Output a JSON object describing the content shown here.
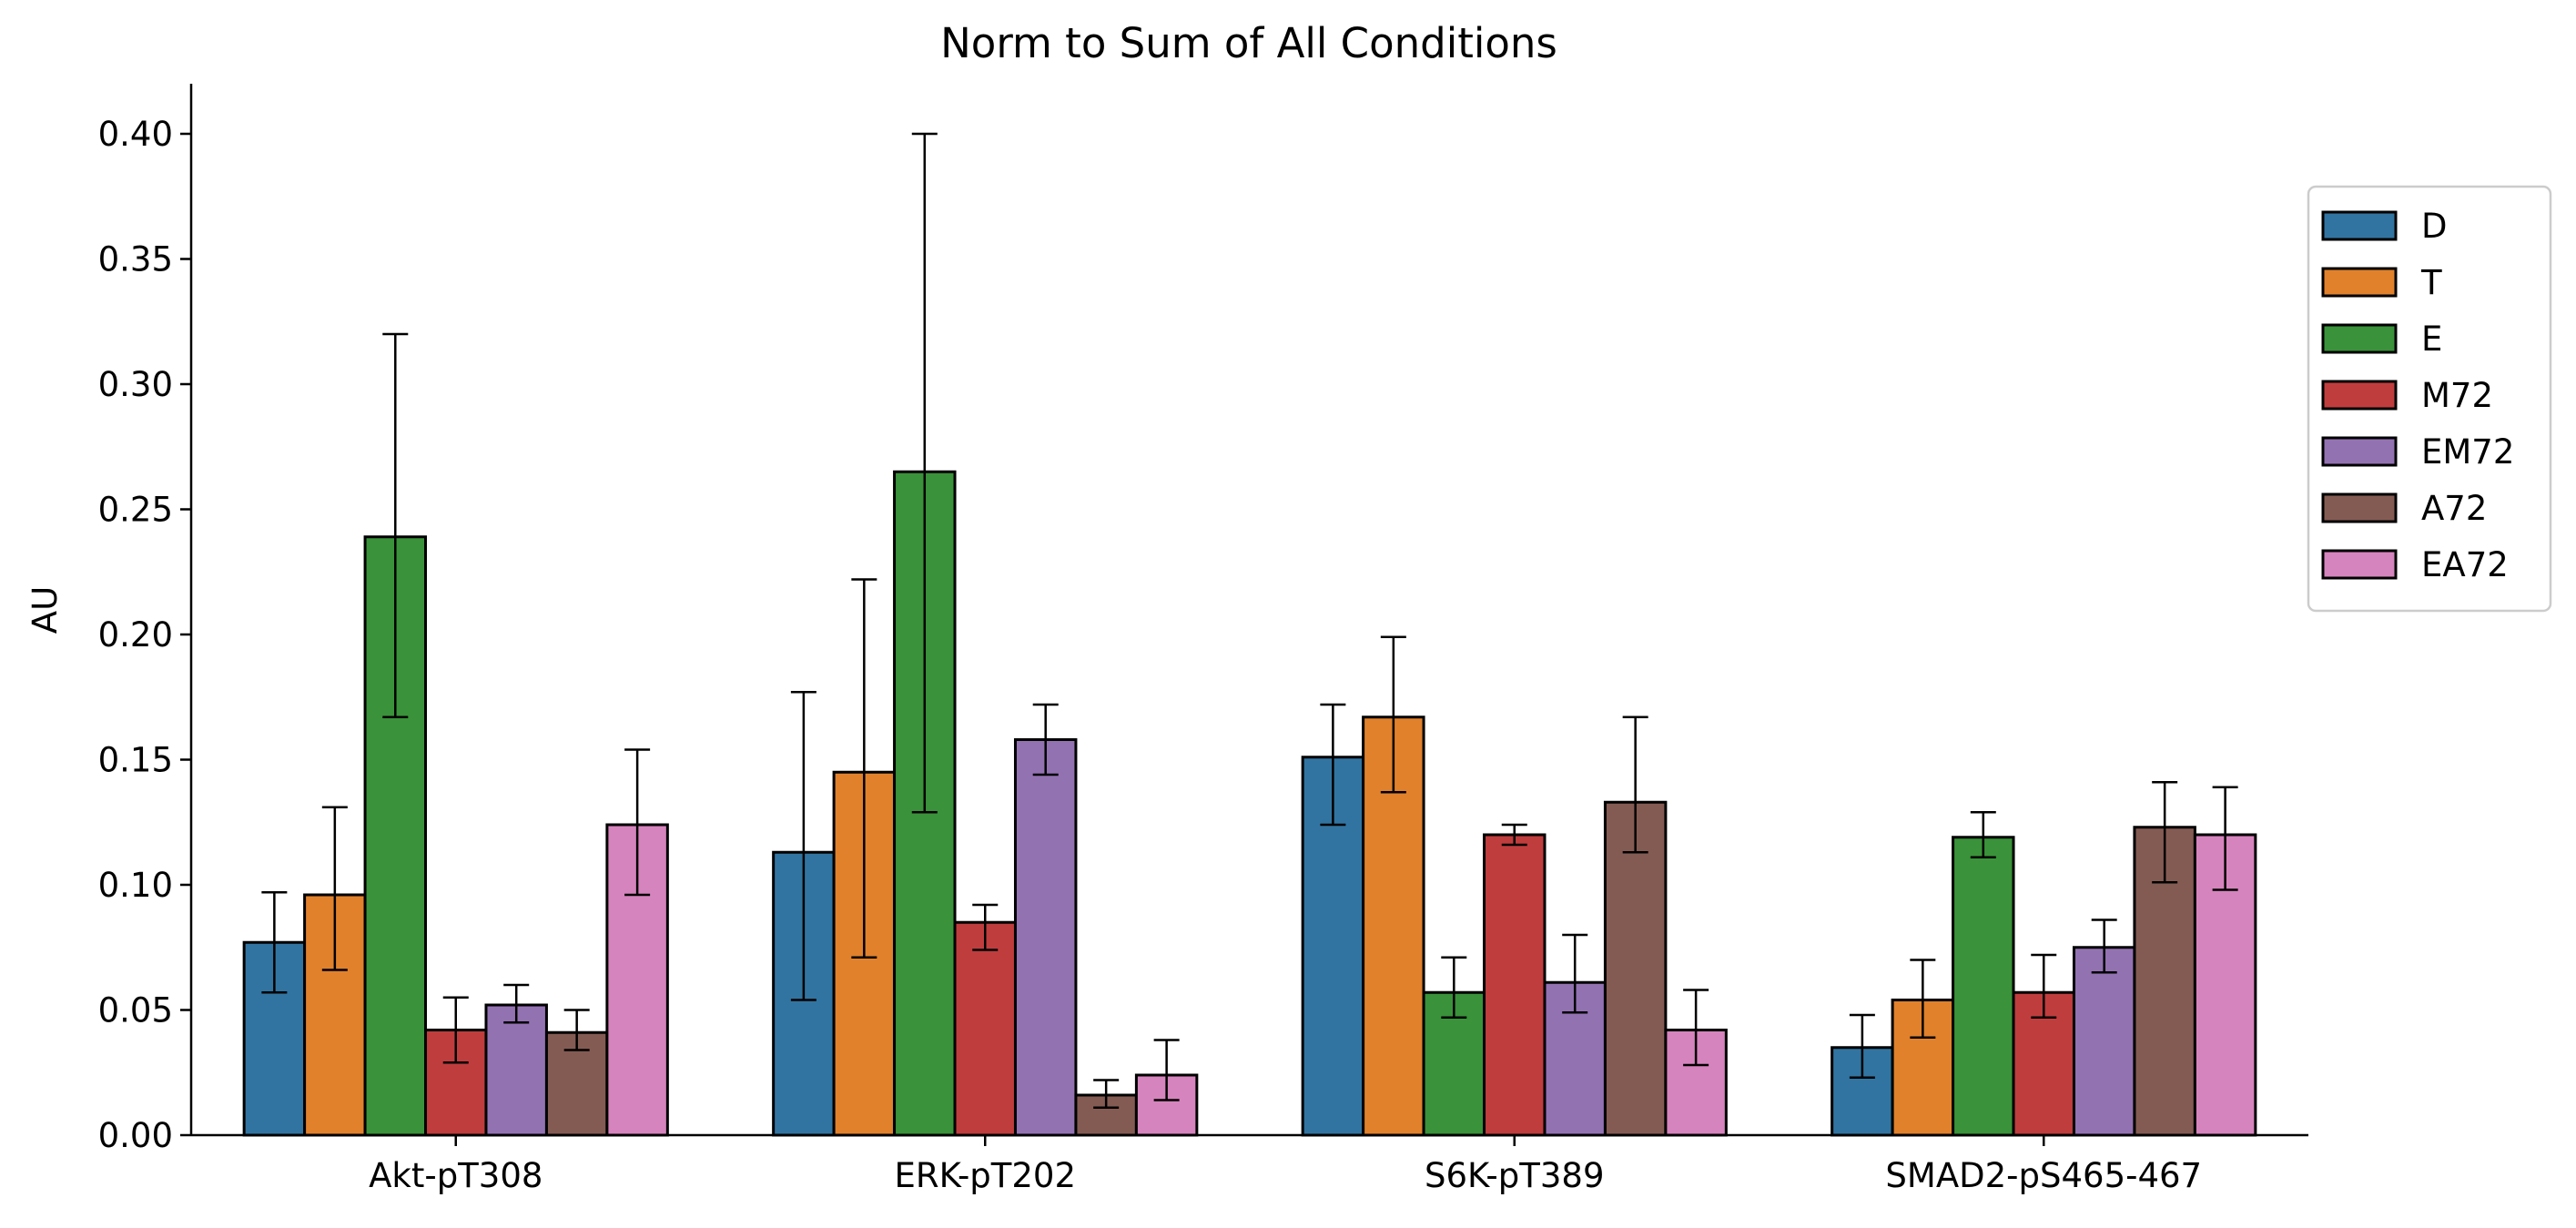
{
  "chart_data": {
    "type": "bar",
    "title": "Norm to Sum of All Conditions",
    "xlabel": "",
    "ylabel": "AU",
    "ylim": [
      0,
      0.42
    ],
    "yticks": [
      "0.00",
      "0.05",
      "0.10",
      "0.15",
      "0.20",
      "0.25",
      "0.30",
      "0.35",
      "0.40"
    ],
    "categories": [
      "Akt-pT308",
      "ERK-pT202",
      "S6K-pT389",
      "SMAD2-pS465-467"
    ],
    "legend_position": "right",
    "grid": false,
    "series": [
      {
        "name": "D",
        "color": "#3274a1",
        "values": [
          0.077,
          0.113,
          0.151,
          0.035
        ],
        "err_low": [
          0.057,
          0.054,
          0.124,
          0.023
        ],
        "err_high": [
          0.097,
          0.177,
          0.172,
          0.048
        ]
      },
      {
        "name": "T",
        "color": "#e1812c",
        "values": [
          0.096,
          0.145,
          0.167,
          0.054
        ],
        "err_low": [
          0.066,
          0.071,
          0.137,
          0.039
        ],
        "err_high": [
          0.131,
          0.222,
          0.199,
          0.07
        ]
      },
      {
        "name": "E",
        "color": "#3a923a",
        "values": [
          0.239,
          0.265,
          0.057,
          0.119
        ],
        "err_low": [
          0.167,
          0.129,
          0.047,
          0.111
        ],
        "err_high": [
          0.32,
          0.4,
          0.071,
          0.129
        ]
      },
      {
        "name": "M72",
        "color": "#c03d3e",
        "values": [
          0.042,
          0.085,
          0.12,
          0.057
        ],
        "err_low": [
          0.029,
          0.074,
          0.116,
          0.047
        ],
        "err_high": [
          0.055,
          0.092,
          0.124,
          0.072
        ]
      },
      {
        "name": "EM72",
        "color": "#9372b2",
        "values": [
          0.052,
          0.158,
          0.061,
          0.075
        ],
        "err_low": [
          0.045,
          0.144,
          0.049,
          0.065
        ],
        "err_high": [
          0.06,
          0.172,
          0.08,
          0.086
        ]
      },
      {
        "name": "A72",
        "color": "#845b53",
        "values": [
          0.041,
          0.016,
          0.133,
          0.123
        ],
        "err_low": [
          0.034,
          0.011,
          0.113,
          0.101
        ],
        "err_high": [
          0.05,
          0.022,
          0.167,
          0.141
        ]
      },
      {
        "name": "EA72",
        "color": "#d684bd",
        "values": [
          0.124,
          0.024,
          0.042,
          0.12
        ],
        "err_low": [
          0.096,
          0.014,
          0.028,
          0.098
        ],
        "err_high": [
          0.154,
          0.038,
          0.058,
          0.139
        ]
      }
    ]
  }
}
